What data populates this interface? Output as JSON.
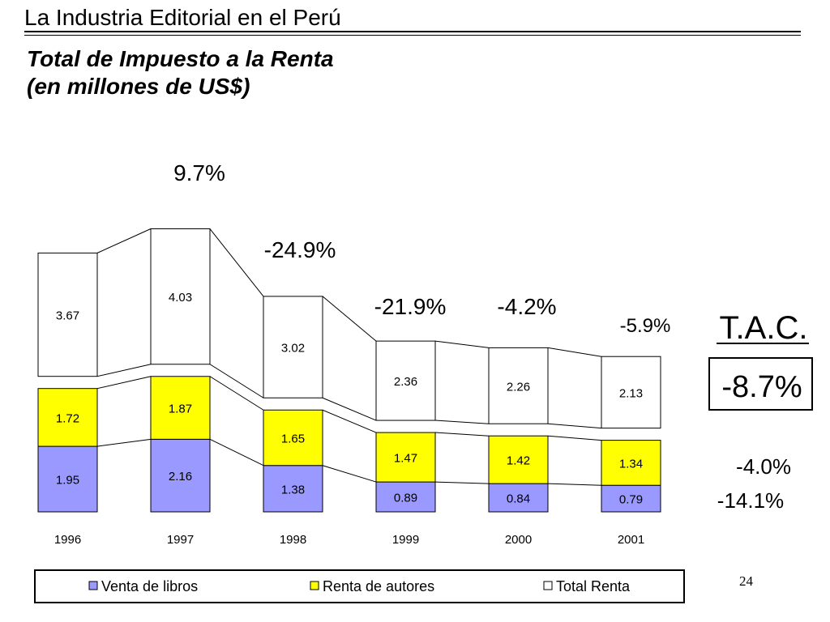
{
  "slide": {
    "header_title": "La Industria Editorial en el Perú",
    "subtitle_line1": "Total de Impuesto a la Renta",
    "subtitle_line2": "(en millones de US$)",
    "page_number": "24"
  },
  "chart_data": {
    "type": "bar",
    "stacked": true,
    "categories": [
      "1996",
      "1997",
      "1998",
      "1999",
      "2000",
      "2001"
    ],
    "series": [
      {
        "name": "Venta de libros",
        "values": [
          1.95,
          2.16,
          1.38,
          0.89,
          0.84,
          0.79
        ],
        "color": "#9999ff"
      },
      {
        "name": "Renta de autores",
        "values": [
          1.72,
          1.87,
          1.65,
          1.47,
          1.42,
          1.34
        ],
        "color": "#ffff00"
      },
      {
        "name": "Total Renta",
        "values": [
          3.67,
          4.03,
          3.02,
          2.36,
          2.26,
          2.13
        ],
        "color": "#ffffff"
      }
    ],
    "growth_labels": [
      "9.7%",
      "-24.9%",
      "-21.9%",
      "-4.2%",
      "-5.9%"
    ],
    "tac": {
      "label": "T.A.C.",
      "total_rate": "-8.7%",
      "renta_autores_rate": "-4.0%",
      "venta_libros_rate": "-14.1%"
    },
    "legend_position": "bottom",
    "grid": false
  }
}
